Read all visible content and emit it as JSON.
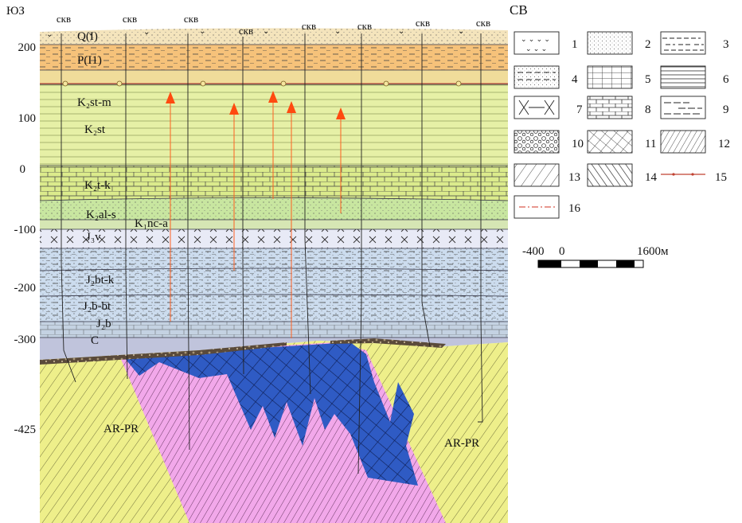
{
  "corner_left": "ЮЗ",
  "corner_right": "СВ",
  "depth_ticks": [
    "200",
    "100",
    "0",
    "-100",
    "-200",
    "-300",
    "-425"
  ],
  "well_label": "скв",
  "units": {
    "q": "Q(I)",
    "p": "P(I1)",
    "k2stm": "K₂st-m",
    "k2st": "K₂st",
    "k2tk": "K₂t-k",
    "k2als": "K₂al-s",
    "k1nca": "K₁nc-a",
    "j3v": "J₃v",
    "j2btk": "J₂bt-k",
    "j2bbt": "J₂b-bt",
    "j2b": "J₂b",
    "c": "C",
    "arpr_left": "AR-PR",
    "arpr_right": "AR-PR"
  },
  "legend": [
    "1",
    "2",
    "3",
    "4",
    "5",
    "6",
    "7",
    "8",
    "9",
    "10",
    "11",
    "12",
    "13",
    "14",
    "15",
    "16"
  ],
  "scale_bar": {
    "left": "-400",
    "zero": "0",
    "right": "1600м"
  },
  "colors": {
    "quaternary": "#f4e4bc",
    "paleogene": "#f6c27a",
    "cretaceous_upper": "#e6f0a6",
    "turonian": "#dbeb8c",
    "albian": "#c8e6a0",
    "neocomian": "#d6e6b4",
    "jurassic": "#ccdcee",
    "jurassic_lower": "#c4d2e2",
    "carbon": "#c0c4dc",
    "basement_yellow": "#eeef8a",
    "basement_pink": "#f2a8ea",
    "intrusion_blue": "#2f5bc4",
    "arrow": "#ff5010"
  }
}
